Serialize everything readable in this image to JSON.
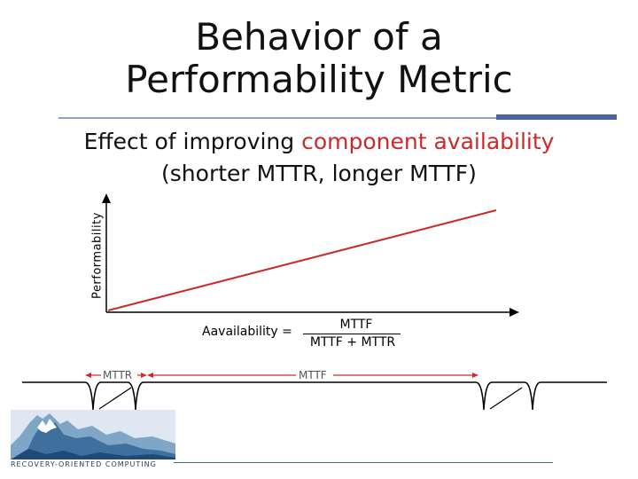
{
  "title": {
    "line1": "Behavior of a",
    "line2": "Performability Metric"
  },
  "subtitle": {
    "line1_prefix": "Effect of improving ",
    "line1_highlight": "component availability",
    "line2": "(shorter MTTR, longer MTTF)"
  },
  "graph": {
    "ylabel": "Performability"
  },
  "formula": {
    "lhs": "Aavailability  =",
    "numerator": "MTTF",
    "denominator": "MTTF + MTTR"
  },
  "timeline": {
    "mttr_label": "MTTR",
    "mttf_label": "MTTF"
  },
  "logo": {
    "text": "RECOVERY-ORIENTED COMPUTING"
  },
  "colors": {
    "accent_red": "#cc2a2a",
    "rule_blue": "#4a62a8"
  }
}
